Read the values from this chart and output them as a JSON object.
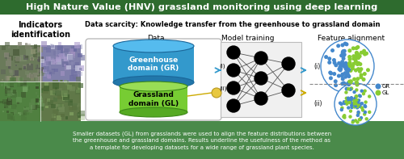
{
  "title": "High Nature Value (HNV) grassland monitoring using deep learning",
  "title_bg": "#2e6b2e",
  "title_color": "white",
  "subtitle": "Data scarcity: Knowledge transfer from the greenhouse to grassland domain",
  "indicators_label": "Indicators\nidentification",
  "section_data": "Data",
  "section_model": "Model training",
  "section_feature": "Feature alignment",
  "greenhouse_label": "Greenhouse\ndomain (GR)",
  "grassland_label": "Grassland\ndomain (GL)",
  "bottom_text": "Smaller datasets (GL) from grasslands were used to align the feature distributions between\nthe greenhouse and grassland domains. Results underline the usefulness of the method as\na template for developing datasets for a wide range of grassland plant species.",
  "left_panel_bg": "#3d7a3d",
  "bottom_bg": "#4a8a4a",
  "gr_color": "#4488cc",
  "gl_color": "#88cc33",
  "legend_gr": "GR",
  "legend_gl": "GL",
  "photo_tl_base": "#687a5a",
  "photo_tr_base": "#7a6090",
  "photo_bl_base": "#5a7848",
  "photo_br_base": "#607850",
  "border_gray": "#bbbbbb",
  "nn_bg": "#f0f0f0",
  "data_box_bg": "#f8f8f8"
}
